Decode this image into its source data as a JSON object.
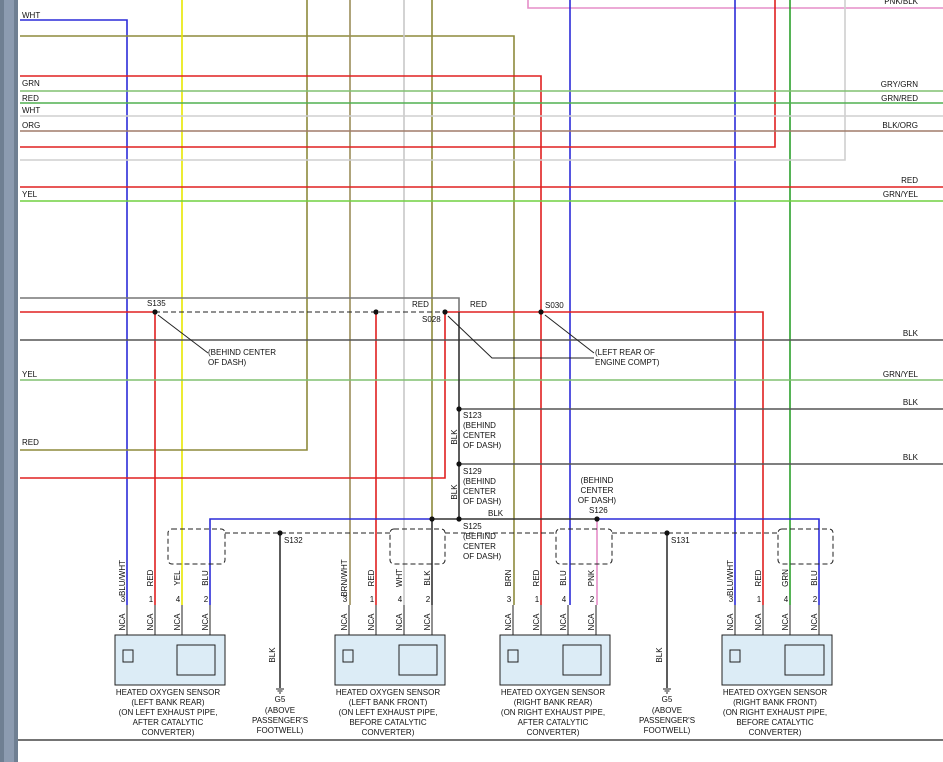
{
  "left_labels": [
    "WHT",
    "GRN",
    "RED",
    "WHT",
    "ORG",
    "YEL",
    "YEL",
    "RED"
  ],
  "right_labels": [
    "PNK/BLK",
    "GRY/GRN",
    "GRN/RED",
    "BLK/ORG",
    "RED",
    "GRN/YEL",
    "BLK",
    "GRN/YEL",
    "BLK",
    "BLK"
  ],
  "splices": [
    {
      "id": "S135",
      "note": [
        "(BEHIND CENTER",
        "OF DASH)"
      ]
    },
    {
      "id": "S028"
    },
    {
      "id": "S030",
      "note": [
        "(LEFT REAR OF",
        "ENGINE COMPT)"
      ]
    },
    {
      "id": "S123",
      "note": [
        "(BEHIND",
        "CENTER",
        "OF DASH)"
      ]
    },
    {
      "id": "S129",
      "note": [
        "(BEHIND",
        "CENTER",
        "OF DASH)"
      ]
    },
    {
      "id": "S125",
      "note": [
        "(BEHIND",
        "CENTER",
        "OF DASH)"
      ]
    },
    {
      "id": "S126",
      "note": [
        "(BEHIND",
        "CENTER",
        "OF DASH)"
      ]
    },
    {
      "id": "S132"
    },
    {
      "id": "S131"
    }
  ],
  "wire_labels": [
    "RED",
    "RED",
    "BLK",
    "BLK",
    "BLK"
  ],
  "sensors": [
    {
      "pins": [
        {
          "num": "3",
          "color": "BLU/WHT",
          "conn": "NCA"
        },
        {
          "num": "1",
          "color": "RED",
          "conn": "NCA"
        },
        {
          "num": "4",
          "color": "YEL",
          "conn": "NCA"
        },
        {
          "num": "2",
          "color": "BLU",
          "conn": "NCA"
        }
      ],
      "title": [
        "HEATED OXYGEN SENSOR",
        "(LEFT BANK REAR)",
        "(ON LEFT EXHAUST PIPE,",
        "AFTER CATALYTIC",
        "CONVERTER)"
      ]
    },
    {
      "pins": [
        {
          "num": "3",
          "color": "BRN/WHT",
          "conn": "NCA"
        },
        {
          "num": "1",
          "color": "RED",
          "conn": "NCA"
        },
        {
          "num": "4",
          "color": "WHT",
          "conn": "NCA"
        },
        {
          "num": "2",
          "color": "BLK",
          "conn": "NCA"
        }
      ],
      "title": [
        "HEATED OXYGEN SENSOR",
        "(LEFT BANK FRONT)",
        "(ON LEFT EXHAUST PIPE,",
        "BEFORE CATALYTIC",
        "CONVERTER)"
      ]
    },
    {
      "pins": [
        {
          "num": "3",
          "color": "BRN",
          "conn": "NCA"
        },
        {
          "num": "1",
          "color": "RED",
          "conn": "NCA"
        },
        {
          "num": "4",
          "color": "BLU",
          "conn": "NCA"
        },
        {
          "num": "2",
          "color": "PNK",
          "conn": "NCA"
        }
      ],
      "title": [
        "HEATED OXYGEN SENSOR",
        "(RIGHT BANK REAR)",
        "(ON RIGHT EXHAUST PIPE,",
        "AFTER CATALYTIC",
        "CONVERTER)"
      ]
    },
    {
      "pins": [
        {
          "num": "3",
          "color": "BLU/WHT",
          "conn": "NCA"
        },
        {
          "num": "1",
          "color": "RED",
          "conn": "NCA"
        },
        {
          "num": "4",
          "color": "GRN",
          "conn": "NCA"
        },
        {
          "num": "2",
          "color": "BLU",
          "conn": "NCA"
        }
      ],
      "title": [
        "HEATED OXYGEN SENSOR",
        "(RIGHT BANK FRONT)",
        "(ON RIGHT EXHAUST PIPE,",
        "BEFORE CATALYTIC",
        "CONVERTER)"
      ]
    }
  ],
  "grounds": [
    {
      "id": "G5",
      "wire": "BLK",
      "note": [
        "(ABOVE",
        "PASSENGER'S",
        "FOOTWELL)"
      ]
    },
    {
      "id": "G5",
      "wire": "BLK",
      "note": [
        "(ABOVE",
        "PASSENGER'S",
        "FOOTWELL)"
      ]
    }
  ]
}
